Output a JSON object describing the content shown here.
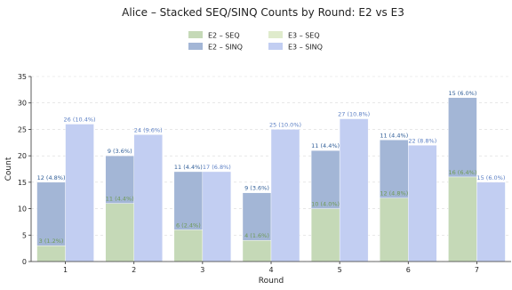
{
  "chart_data": {
    "type": "bar",
    "title": "Alice – Stacked SEQ/SINQ Counts by Round: E2 vs E3",
    "xlabel": "Round",
    "ylabel": "Count",
    "categories": [
      "1",
      "2",
      "3",
      "4",
      "5",
      "6",
      "7"
    ],
    "ylim": [
      0,
      35
    ],
    "yticks": [
      0,
      5,
      10,
      15,
      20,
      25,
      30,
      35
    ],
    "grid": true,
    "legend_position": "top-center",
    "series": [
      {
        "name": "E2 – SEQ",
        "group": "E2",
        "color": "#c5d9b7",
        "values": [
          3,
          11,
          6,
          4,
          10,
          12,
          16
        ],
        "labels": [
          "3 (1.2%)",
          "11 (4.4%)",
          "6 (2.4%)",
          "4 (1.6%)",
          "10 (4.0%)",
          "12 (4.8%)",
          "16 (6.4%)"
        ],
        "label_color": "#6e9a57"
      },
      {
        "name": "E2 – SINQ",
        "group": "E2",
        "color": "#a3b6d6",
        "values": [
          12,
          9,
          11,
          9,
          11,
          11,
          15
        ],
        "labels": [
          "12 (4.8%)",
          "9 (3.6%)",
          "11 (4.4%)",
          "9 (3.6%)",
          "11 (4.4%)",
          "11 (4.4%)",
          "15 (6.0%)"
        ],
        "label_color": "#2f5d97"
      },
      {
        "name": "E3 – SEQ",
        "group": "E3",
        "color": "#dfebcc",
        "values": [
          0,
          0,
          0,
          0,
          0,
          0,
          0
        ],
        "labels": [
          "",
          "",
          "",
          "",
          "",
          "",
          ""
        ],
        "label_color": "#7fa564"
      },
      {
        "name": "E3 – SINQ",
        "group": "E3",
        "color": "#c2cef2",
        "values": [
          26,
          24,
          17,
          25,
          27,
          22,
          15
        ],
        "labels": [
          "26 (10.4%)",
          "24 (9.6%)",
          "17 (6.8%)",
          "25 (10.0%)",
          "27 (10.8%)",
          "22 (8.8%)",
          "15 (6.0%)"
        ],
        "label_color": "#5b7fc4"
      }
    ]
  }
}
